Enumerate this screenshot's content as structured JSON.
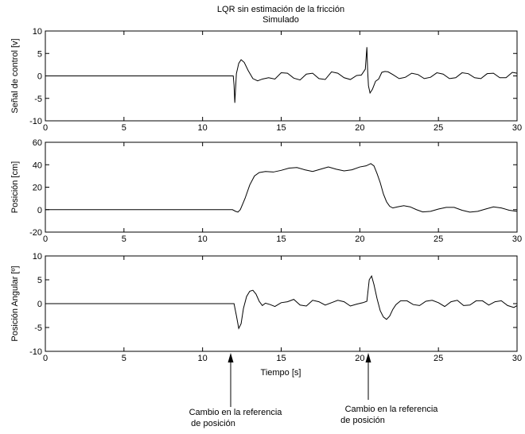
{
  "figure": {
    "title_line1": "LQR sin estimación de la fricción",
    "title_line2": "Simulado"
  },
  "annotations": [
    {
      "text_line1": "Cambio en la referencia",
      "text_line2": "de posición",
      "x": 12
    },
    {
      "text_line1": "Cambio en la referencia",
      "text_line2": "de posición",
      "x": 20.5
    }
  ],
  "chart_data": [
    {
      "type": "line",
      "ylabel": "Señal de control [v]",
      "xlabel": "",
      "xlim": [
        0,
        30
      ],
      "ylim": [
        -10,
        10
      ],
      "xticks": [
        0,
        5,
        10,
        15,
        20,
        25,
        30
      ],
      "yticks": [
        -10,
        -5,
        0,
        5,
        10
      ],
      "series": [
        {
          "x": [
            0,
            11.95,
            12.0,
            12.05,
            12.15,
            12.3,
            12.45,
            12.65,
            12.9,
            13.2,
            13.5,
            13.8,
            14.2,
            14.6,
            15.0,
            15.4,
            15.8,
            16.2,
            16.6,
            17.0,
            17.4,
            17.8,
            18.2,
            18.6,
            19.0,
            19.4,
            19.8,
            20.1,
            20.35,
            20.45,
            20.5,
            20.55,
            20.65,
            20.8,
            21.0,
            21.2,
            21.4,
            21.6,
            21.8,
            22.1,
            22.5,
            22.9,
            23.3,
            23.7,
            24.1,
            24.5,
            24.9,
            25.3,
            25.7,
            26.1,
            26.5,
            26.9,
            27.3,
            27.7,
            28.1,
            28.5,
            28.9,
            29.3,
            29.7,
            30.0
          ],
          "y": [
            0,
            0,
            -2.0,
            -6.0,
            0.5,
            2.8,
            3.6,
            3.0,
            1.2,
            -0.6,
            -1.1,
            -0.7,
            -0.4,
            -0.7,
            0.7,
            0.6,
            -0.5,
            -0.9,
            0.4,
            0.6,
            -0.6,
            -0.8,
            0.9,
            0.6,
            -0.4,
            -0.8,
            0.1,
            0.2,
            1.5,
            6.4,
            1.0,
            -2.2,
            -3.8,
            -3.0,
            -1.2,
            -0.7,
            0.8,
            1.0,
            0.9,
            0.3,
            -0.6,
            -0.3,
            0.6,
            0.3,
            -0.6,
            -0.3,
            0.7,
            0.4,
            -0.6,
            -0.4,
            0.7,
            0.5,
            -0.4,
            -0.6,
            0.5,
            0.6,
            -0.4,
            -0.4,
            0.8,
            0.6
          ]
        }
      ]
    },
    {
      "type": "line",
      "ylabel": "Posición [cm]",
      "xlabel": "",
      "xlim": [
        0,
        30
      ],
      "ylim": [
        -20,
        60
      ],
      "xticks": [
        0,
        5,
        10,
        15,
        20,
        25,
        30
      ],
      "yticks": [
        -20,
        0,
        20,
        40,
        60
      ],
      "series": [
        {
          "x": [
            0,
            11.9,
            12.1,
            12.25,
            12.4,
            12.7,
            13.0,
            13.3,
            13.6,
            14.0,
            14.5,
            15.0,
            15.5,
            16.0,
            16.5,
            17.0,
            17.5,
            18.0,
            18.5,
            19.0,
            19.5,
            20.0,
            20.4,
            20.7,
            20.9,
            21.1,
            21.3,
            21.5,
            21.7,
            21.9,
            22.1,
            22.4,
            22.8,
            23.2,
            23.6,
            24.0,
            24.5,
            25.0,
            25.5,
            26.0,
            26.5,
            27.0,
            27.5,
            28.0,
            28.5,
            29.0,
            29.5,
            30.0
          ],
          "y": [
            0,
            0,
            -1.5,
            -2.2,
            0,
            10,
            22,
            30,
            33,
            34,
            33.5,
            35,
            37,
            37.5,
            35.5,
            34,
            36,
            38,
            36,
            34.5,
            35.5,
            38,
            39,
            41,
            39,
            32,
            24,
            14,
            7,
            3,
            1.5,
            2.5,
            3.5,
            2.5,
            0,
            -2,
            -1.5,
            0.5,
            2,
            2,
            -0.5,
            -2.2,
            -1.5,
            0.5,
            2.5,
            1.5,
            -0.5,
            -1.5
          ]
        }
      ]
    },
    {
      "type": "line",
      "ylabel": "Posición Angular [º]",
      "xlabel": "Tiempo [s]",
      "xlim": [
        0,
        30
      ],
      "ylim": [
        -10,
        10
      ],
      "xticks": [
        0,
        5,
        10,
        15,
        20,
        25,
        30
      ],
      "yticks": [
        -10,
        -5,
        0,
        5,
        10
      ],
      "series": [
        {
          "x": [
            0,
            12.0,
            12.15,
            12.3,
            12.45,
            12.6,
            12.8,
            13.0,
            13.2,
            13.4,
            13.6,
            13.8,
            14.0,
            14.3,
            14.6,
            15.0,
            15.4,
            15.8,
            16.2,
            16.6,
            17.0,
            17.4,
            17.8,
            18.2,
            18.6,
            19.0,
            19.4,
            19.8,
            20.2,
            20.45,
            20.6,
            20.75,
            20.9,
            21.1,
            21.3,
            21.5,
            21.7,
            21.9,
            22.1,
            22.3,
            22.6,
            23.0,
            23.4,
            23.8,
            24.2,
            24.6,
            25.0,
            25.4,
            25.8,
            26.2,
            26.6,
            27.0,
            27.4,
            27.8,
            28.2,
            28.6,
            29.0,
            29.4,
            29.8,
            30.0
          ],
          "y": [
            0,
            0,
            -2.5,
            -5.2,
            -4.2,
            -1.0,
            1.5,
            2.6,
            2.8,
            2.0,
            0.5,
            -0.4,
            0.1,
            -0.2,
            -0.6,
            0.2,
            0.4,
            0.9,
            -0.3,
            -0.5,
            0.7,
            0.4,
            -0.3,
            0.2,
            0.7,
            0.4,
            -0.5,
            -0.1,
            0.2,
            0.5,
            5.0,
            5.8,
            4.0,
            1.0,
            -1.5,
            -2.8,
            -3.3,
            -2.6,
            -1.2,
            -0.2,
            0.6,
            0.6,
            -0.2,
            -0.4,
            0.5,
            0.7,
            0.2,
            -0.6,
            0.4,
            0.7,
            -0.4,
            -0.3,
            0.6,
            0.6,
            -0.3,
            0.4,
            0.6,
            -0.4,
            -0.8,
            -0.4
          ]
        }
      ]
    }
  ]
}
